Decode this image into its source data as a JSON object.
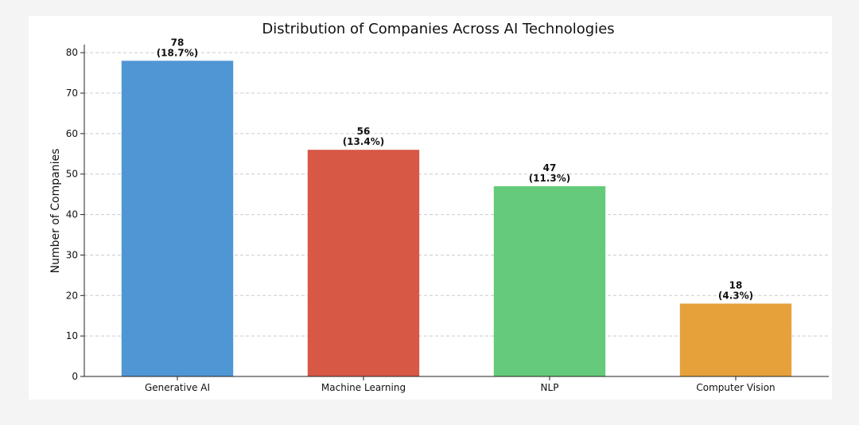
{
  "chart_data": {
    "type": "bar",
    "title": "Distribution of Companies Across AI Technologies",
    "xlabel": "",
    "ylabel": "Number of Companies",
    "categories": [
      "Generative AI",
      "Machine Learning",
      "NLP",
      "Computer Vision"
    ],
    "values": [
      78,
      56,
      47,
      18
    ],
    "value_labels": [
      "78",
      "56",
      "47",
      "18"
    ],
    "percent_labels": [
      "(18.7%)",
      "(13.4%)",
      "(11.3%)",
      "(4.3%)"
    ],
    "colors": [
      "#4f96d5",
      "#d65845",
      "#65cb7a",
      "#e6a13b"
    ],
    "ylim": [
      0,
      82
    ],
    "yticks": [
      0,
      10,
      20,
      30,
      40,
      50,
      60,
      70,
      80
    ],
    "grid": true,
    "grid_axis": "y",
    "legend": "none"
  }
}
